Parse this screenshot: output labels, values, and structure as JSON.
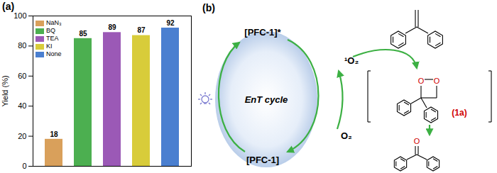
{
  "chart_data": {
    "type": "bar",
    "title": "(a)",
    "y_label": "Yield (%)",
    "categories": [
      "NaN₃",
      "BQ",
      "TEA",
      "KI",
      "None"
    ],
    "values": [
      18,
      85,
      89,
      87,
      92
    ],
    "colors": [
      "#d9a05b",
      "#4caf50",
      "#9b59b6",
      "#d8cc3a",
      "#4a7fd0"
    ],
    "ylim": [
      0,
      100
    ],
    "yticks": [
      0,
      20,
      40,
      60,
      80,
      100
    ],
    "grid": false,
    "legend": "top-left",
    "data_labels": true,
    "tick_labels": "y"
  },
  "diagram": {
    "label": "(b)",
    "excited": "[PFC-1]*",
    "ground": "[PFC-1]",
    "cycle": "EnT cycle",
    "singlet_oxygen": "¹O₂",
    "oxygen": "O₂",
    "intermediate": "(1a)",
    "oxygen_atom": "O"
  }
}
